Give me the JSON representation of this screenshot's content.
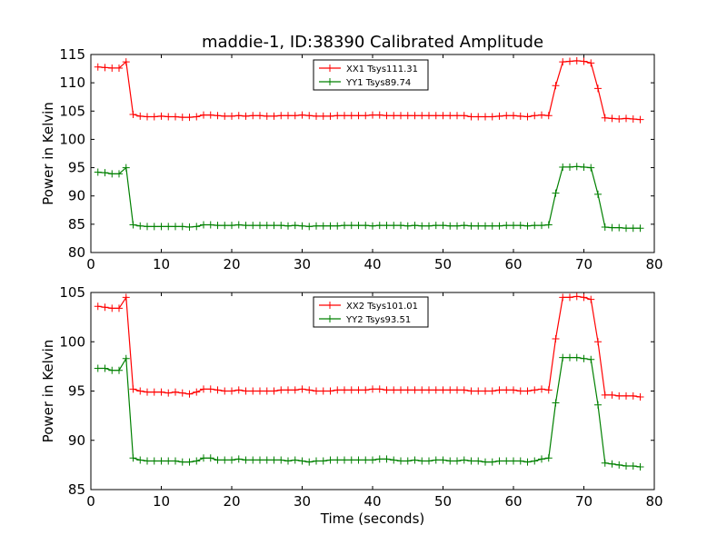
{
  "figure": {
    "title": "maddie-1, ID:38390 Calibrated Amplitude"
  },
  "chart_data": [
    {
      "type": "line",
      "title": "maddie-1, ID:38390 Calibrated Amplitude",
      "xlabel": "",
      "ylabel": "Power in Kelvin",
      "xlim": [
        0,
        80
      ],
      "ylim": [
        80,
        115
      ],
      "xticks": [
        "0",
        "10",
        "20",
        "30",
        "40",
        "50",
        "60",
        "70",
        "80"
      ],
      "yticks": [
        "80",
        "85",
        "90",
        "95",
        "100",
        "105",
        "110",
        "115"
      ],
      "grid": false,
      "legend": "top-center",
      "x": [
        1,
        2,
        3,
        4,
        5,
        6,
        7,
        8,
        9,
        10,
        11,
        12,
        13,
        14,
        15,
        16,
        17,
        18,
        19,
        20,
        21,
        22,
        23,
        24,
        25,
        26,
        27,
        28,
        29,
        30,
        31,
        32,
        33,
        34,
        35,
        36,
        37,
        38,
        39,
        40,
        41,
        42,
        43,
        44,
        45,
        46,
        47,
        48,
        49,
        50,
        51,
        52,
        53,
        54,
        55,
        56,
        57,
        58,
        59,
        60,
        61,
        62,
        63,
        64,
        65,
        66,
        67,
        68,
        69,
        70,
        71,
        72,
        73,
        74,
        75,
        76,
        77,
        78
      ],
      "series": [
        {
          "name": "XX1 Tsys111.31",
          "color": "#ff0000",
          "values": [
            112.8,
            112.7,
            112.6,
            112.6,
            113.7,
            104.4,
            104.1,
            104.0,
            104.0,
            104.1,
            104.0,
            104.0,
            103.9,
            103.9,
            104.0,
            104.3,
            104.3,
            104.2,
            104.1,
            104.1,
            104.2,
            104.1,
            104.2,
            104.2,
            104.1,
            104.1,
            104.2,
            104.2,
            104.2,
            104.3,
            104.2,
            104.1,
            104.1,
            104.1,
            104.2,
            104.2,
            104.2,
            104.2,
            104.2,
            104.3,
            104.3,
            104.2,
            104.2,
            104.2,
            104.2,
            104.2,
            104.2,
            104.2,
            104.2,
            104.2,
            104.2,
            104.2,
            104.2,
            104.0,
            104.0,
            104.0,
            104.0,
            104.1,
            104.2,
            104.2,
            104.1,
            104.0,
            104.2,
            104.3,
            104.2,
            109.5,
            113.7,
            113.8,
            113.9,
            113.8,
            113.5,
            109.0,
            103.8,
            103.7,
            103.6,
            103.7,
            103.6,
            103.5
          ]
        },
        {
          "name": "YY1 Tsys89.74",
          "color": "#008000",
          "values": [
            94.2,
            94.1,
            93.9,
            93.9,
            95.0,
            84.9,
            84.7,
            84.6,
            84.6,
            84.6,
            84.6,
            84.6,
            84.6,
            84.5,
            84.6,
            84.9,
            84.9,
            84.8,
            84.8,
            84.8,
            84.9,
            84.8,
            84.8,
            84.8,
            84.8,
            84.8,
            84.8,
            84.7,
            84.8,
            84.7,
            84.6,
            84.7,
            84.7,
            84.7,
            84.7,
            84.8,
            84.8,
            84.8,
            84.8,
            84.7,
            84.8,
            84.8,
            84.8,
            84.8,
            84.7,
            84.8,
            84.7,
            84.7,
            84.8,
            84.8,
            84.7,
            84.7,
            84.8,
            84.7,
            84.7,
            84.7,
            84.7,
            84.7,
            84.8,
            84.8,
            84.8,
            84.7,
            84.8,
            84.8,
            84.9,
            90.5,
            95.1,
            95.1,
            95.2,
            95.1,
            95.0,
            90.3,
            84.5,
            84.4,
            84.4,
            84.3,
            84.3,
            84.3
          ]
        }
      ]
    },
    {
      "type": "line",
      "title": "",
      "xlabel": "Time (seconds)",
      "ylabel": "Power in Kelvin",
      "xlim": [
        0,
        80
      ],
      "ylim": [
        85,
        105
      ],
      "xticks": [
        "0",
        "10",
        "20",
        "30",
        "40",
        "50",
        "60",
        "70",
        "80"
      ],
      "yticks": [
        "85",
        "90",
        "95",
        "100",
        "105"
      ],
      "grid": false,
      "legend": "top-center",
      "x": [
        1,
        2,
        3,
        4,
        5,
        6,
        7,
        8,
        9,
        10,
        11,
        12,
        13,
        14,
        15,
        16,
        17,
        18,
        19,
        20,
        21,
        22,
        23,
        24,
        25,
        26,
        27,
        28,
        29,
        30,
        31,
        32,
        33,
        34,
        35,
        36,
        37,
        38,
        39,
        40,
        41,
        42,
        43,
        44,
        45,
        46,
        47,
        48,
        49,
        50,
        51,
        52,
        53,
        54,
        55,
        56,
        57,
        58,
        59,
        60,
        61,
        62,
        63,
        64,
        65,
        66,
        67,
        68,
        69,
        70,
        71,
        72,
        73,
        74,
        75,
        76,
        77,
        78
      ],
      "series": [
        {
          "name": "XX2 Tsys101.01",
          "color": "#ff0000",
          "values": [
            103.6,
            103.5,
            103.4,
            103.4,
            104.5,
            95.2,
            95.0,
            94.9,
            94.9,
            94.9,
            94.8,
            94.9,
            94.8,
            94.7,
            94.9,
            95.2,
            95.2,
            95.1,
            95.0,
            95.0,
            95.1,
            95.0,
            95.0,
            95.0,
            95.0,
            95.0,
            95.1,
            95.1,
            95.1,
            95.2,
            95.1,
            95.0,
            95.0,
            95.0,
            95.1,
            95.1,
            95.1,
            95.1,
            95.1,
            95.2,
            95.2,
            95.1,
            95.1,
            95.1,
            95.1,
            95.1,
            95.1,
            95.1,
            95.1,
            95.1,
            95.1,
            95.1,
            95.1,
            95.0,
            95.0,
            95.0,
            95.0,
            95.1,
            95.1,
            95.1,
            95.0,
            95.0,
            95.1,
            95.2,
            95.1,
            100.3,
            104.5,
            104.5,
            104.6,
            104.5,
            104.3,
            100.0,
            94.6,
            94.6,
            94.5,
            94.5,
            94.5,
            94.4
          ]
        },
        {
          "name": "YY2 Tsys93.51",
          "color": "#008000",
          "values": [
            97.3,
            97.3,
            97.1,
            97.1,
            98.3,
            88.2,
            88.0,
            87.9,
            87.9,
            87.9,
            87.9,
            87.9,
            87.8,
            87.8,
            87.9,
            88.2,
            88.2,
            88.0,
            88.0,
            88.0,
            88.1,
            88.0,
            88.0,
            88.0,
            88.0,
            88.0,
            88.0,
            87.9,
            88.0,
            87.9,
            87.8,
            87.9,
            87.9,
            88.0,
            88.0,
            88.0,
            88.0,
            88.0,
            88.0,
            88.0,
            88.1,
            88.1,
            88.0,
            87.9,
            87.9,
            88.0,
            87.9,
            87.9,
            88.0,
            88.0,
            87.9,
            87.9,
            88.0,
            87.9,
            87.9,
            87.8,
            87.8,
            87.9,
            87.9,
            87.9,
            87.9,
            87.8,
            87.9,
            88.1,
            88.2,
            93.8,
            98.4,
            98.4,
            98.4,
            98.3,
            98.2,
            93.6,
            87.7,
            87.6,
            87.5,
            87.4,
            87.4,
            87.3
          ]
        }
      ]
    }
  ]
}
